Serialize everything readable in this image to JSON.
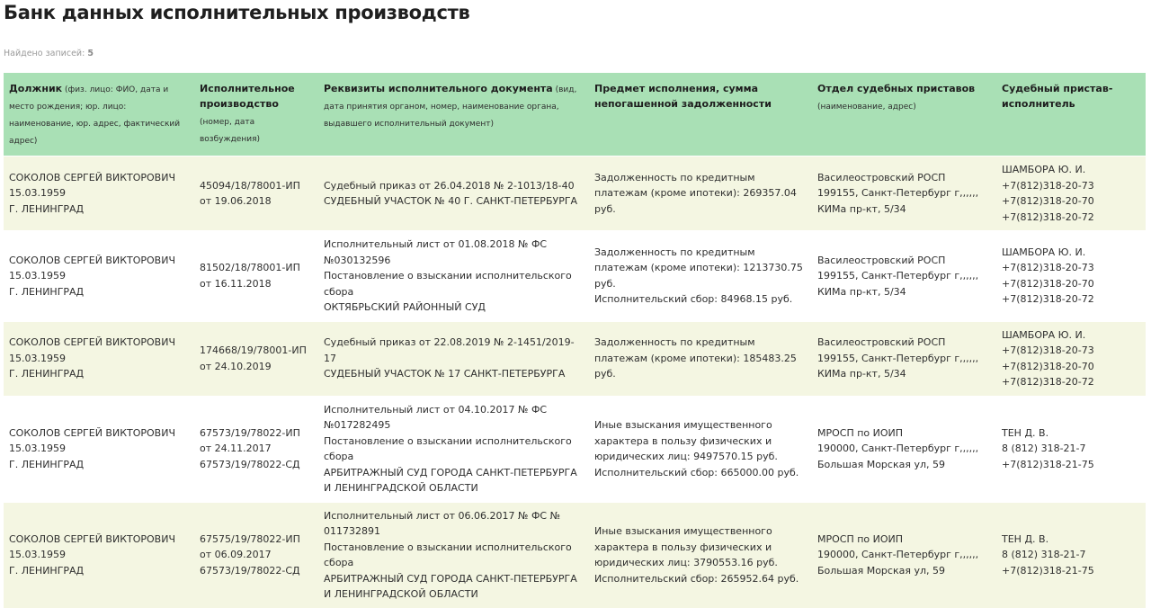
{
  "page_title": "Банк данных исполнительных производств",
  "records_found": {
    "label": "Найдено записей:",
    "count": "5"
  },
  "table": {
    "columns": [
      {
        "title": "Должник",
        "subtitle": " (физ. лицо: ФИО, дата и место рождения; юр. лицо: наименование, юр. адрес, фактический адрес)"
      },
      {
        "title": "Исполнительное производство",
        "subtitle": " (номер, дата возбуждения)"
      },
      {
        "title": "Реквизиты исполнительного документа",
        "subtitle": " (вид, дата принятия органом, номер, наименование органа, выдавшего исполнительный документ)"
      },
      {
        "title": "Предмет исполнения, сумма непогашенной задолженности",
        "subtitle": ""
      },
      {
        "title": "Отдел судебных приставов",
        "subtitle": " (наименование, адрес)"
      },
      {
        "title": "Судебный пристав-исполнитель",
        "subtitle": ""
      }
    ],
    "rows": [
      {
        "debtor": [
          "СОКОЛОВ СЕРГЕЙ ВИКТОРОВИЧ",
          "15.03.1959",
          "Г. ЛЕНИНГРАД"
        ],
        "proceeding": [
          "45094/18/78001-ИП",
          "от 19.06.2018"
        ],
        "document": [
          "Судебный приказ от 26.04.2018 № 2-1013/18-40",
          "СУДЕБНЫЙ УЧАСТОК № 40 Г. САНКТ-ПЕТЕРБУРГА"
        ],
        "subject": [
          "Задолженность по кредитным платежам (кроме ипотеки): 269357.04 руб."
        ],
        "department": [
          "Василеостровский РОСП",
          "199155, Санкт-Петербург г,,,,,,",
          "КИМа пр-кт, 5/34"
        ],
        "bailiff": [
          "ШАМБОРА Ю. И.",
          "+7(812)318-20-73",
          "+7(812)318-20-70",
          "+7(812)318-20-72"
        ]
      },
      {
        "debtor": [
          "СОКОЛОВ СЕРГЕЙ ВИКТОРОВИЧ",
          "15.03.1959",
          "Г. ЛЕНИНГРАД"
        ],
        "proceeding": [
          "81502/18/78001-ИП",
          "от 16.11.2018"
        ],
        "document": [
          "Исполнительный лист от 01.08.2018 № ФС №030132596",
          "Постановление о взыскании исполнительского сбора",
          "ОКТЯБРЬСКИЙ РАЙОННЫЙ СУД"
        ],
        "subject": [
          "Задолженность по кредитным платежам (кроме ипотеки): 1213730.75 руб.",
          "Исполнительский сбор: 84968.15 руб."
        ],
        "department": [
          "Василеостровский РОСП",
          "199155, Санкт-Петербург г,,,,,,",
          "КИМа пр-кт, 5/34"
        ],
        "bailiff": [
          "ШАМБОРА Ю. И.",
          "+7(812)318-20-73",
          "+7(812)318-20-70",
          "+7(812)318-20-72"
        ]
      },
      {
        "debtor": [
          "СОКОЛОВ СЕРГЕЙ ВИКТОРОВИЧ",
          "15.03.1959",
          "Г. ЛЕНИНГРАД"
        ],
        "proceeding": [
          "174668/19/78001-ИП",
          "от 24.10.2019"
        ],
        "document": [
          "Судебный приказ от 22.08.2019 № 2-1451/2019-17",
          "СУДЕБНЫЙ УЧАСТОК № 17 САНКТ-ПЕТЕРБУРГА"
        ],
        "subject": [
          "Задолженность по кредитным платежам (кроме ипотеки): 185483.25 руб."
        ],
        "department": [
          "Василеостровский РОСП",
          "199155, Санкт-Петербург г,,,,,,",
          "КИМа пр-кт, 5/34"
        ],
        "bailiff": [
          "ШАМБОРА Ю. И.",
          "+7(812)318-20-73",
          "+7(812)318-20-70",
          "+7(812)318-20-72"
        ]
      },
      {
        "debtor": [
          "СОКОЛОВ СЕРГЕЙ ВИКТОРОВИЧ",
          "15.03.1959",
          "Г. ЛЕНИНГРАД"
        ],
        "proceeding": [
          "67573/19/78022-ИП",
          "от 24.11.2017",
          "67573/19/78022-СД"
        ],
        "document": [
          "Исполнительный лист от 04.10.2017 № ФС №017282495",
          "Постановление о взыскании исполнительского сбора",
          "АРБИТРАЖНЫЙ СУД ГОРОДА САНКТ-ПЕТЕРБУРГА И ЛЕНИНГРАДСКОЙ ОБЛАСТИ"
        ],
        "subject": [
          "Иные взыскания имущественного характера в пользу физических и юридических лиц: 9497570.15 руб.",
          "Исполнительский сбор: 665000.00 руб."
        ],
        "department": [
          "МРОСП по ИОИП",
          "190000, Санкт-Петербург г,,,,,,",
          "Большая Морская ул, 59"
        ],
        "bailiff": [
          "ТЕН Д. В.",
          "8 (812) 318-21-7",
          "+7(812)318-21-75"
        ]
      },
      {
        "debtor": [
          "СОКОЛОВ СЕРГЕЙ ВИКТОРОВИЧ",
          "15.03.1959",
          "Г. ЛЕНИНГРАД"
        ],
        "proceeding": [
          "67575/19/78022-ИП",
          "от 06.09.2017",
          "67573/19/78022-СД"
        ],
        "document": [
          "Исполнительный лист от 06.06.2017 № ФС № 011732891",
          "Постановление о взыскании исполнительского сбора",
          "АРБИТРАЖНЫЙ СУД ГОРОДА САНКТ-ПЕТЕРБУРГА И ЛЕНИНГРАДСКОЙ ОБЛАСТИ"
        ],
        "subject": [
          "Иные взыскания имущественного характера в пользу физических и юридических лиц: 3790553.16 руб.",
          "Исполнительский сбор: 265952.64 руб."
        ],
        "department": [
          "МРОСП по ИОИП",
          "190000, Санкт-Петербург г,,,,,,",
          "Большая Морская ул, 59"
        ],
        "bailiff": [
          "ТЕН Д. В.",
          "8 (812) 318-21-7",
          "+7(812)318-21-75"
        ]
      }
    ]
  },
  "colors": {
    "header_bg": "#a9e0b5",
    "row_odd_bg": "#f4f6e2",
    "row_even_bg": "#ffffff"
  }
}
